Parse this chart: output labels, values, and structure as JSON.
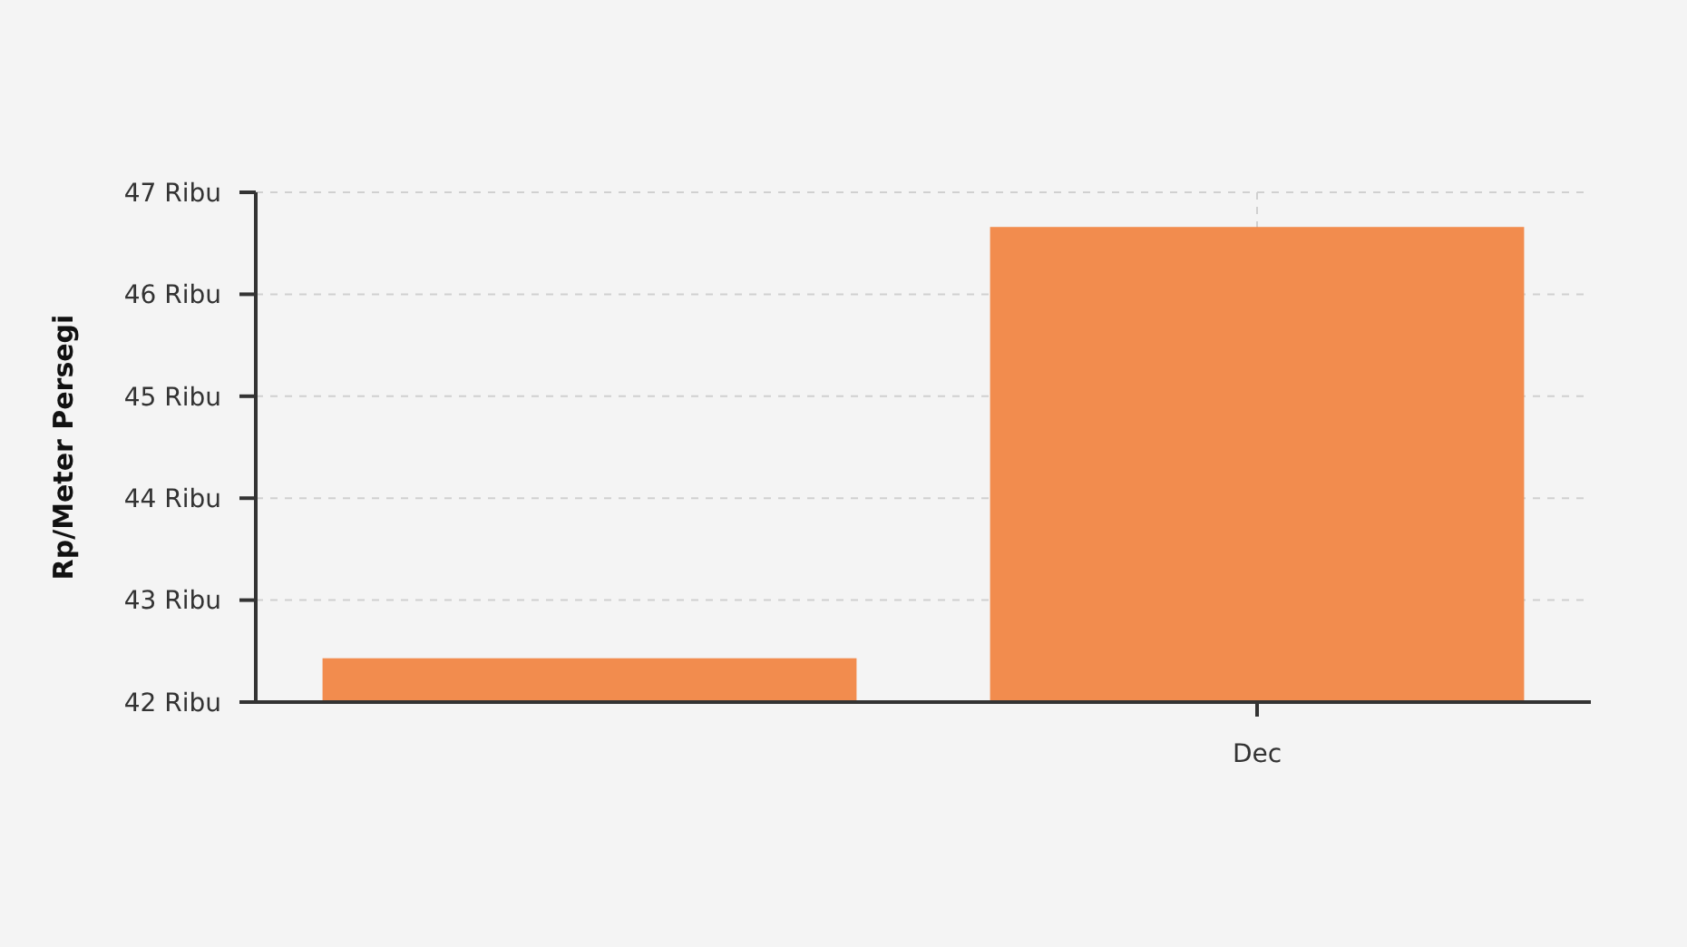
{
  "chart_data": {
    "type": "bar",
    "categories": [
      null,
      "Dec"
    ],
    "values": [
      42.43,
      46.66
    ],
    "color": "#f28c4e",
    "ylabel": "Rp/Meter Persegi",
    "ylim": [
      42,
      47
    ],
    "yticks": [
      {
        "value": 42,
        "label": "42 Ribu"
      },
      {
        "value": 43,
        "label": "43 Ribu"
      },
      {
        "value": 44,
        "label": "44 Ribu"
      },
      {
        "value": 45,
        "label": "45 Ribu"
      },
      {
        "value": 46,
        "label": "46 Ribu"
      },
      {
        "value": 47,
        "label": "47 Ribu"
      }
    ],
    "grid": true
  }
}
